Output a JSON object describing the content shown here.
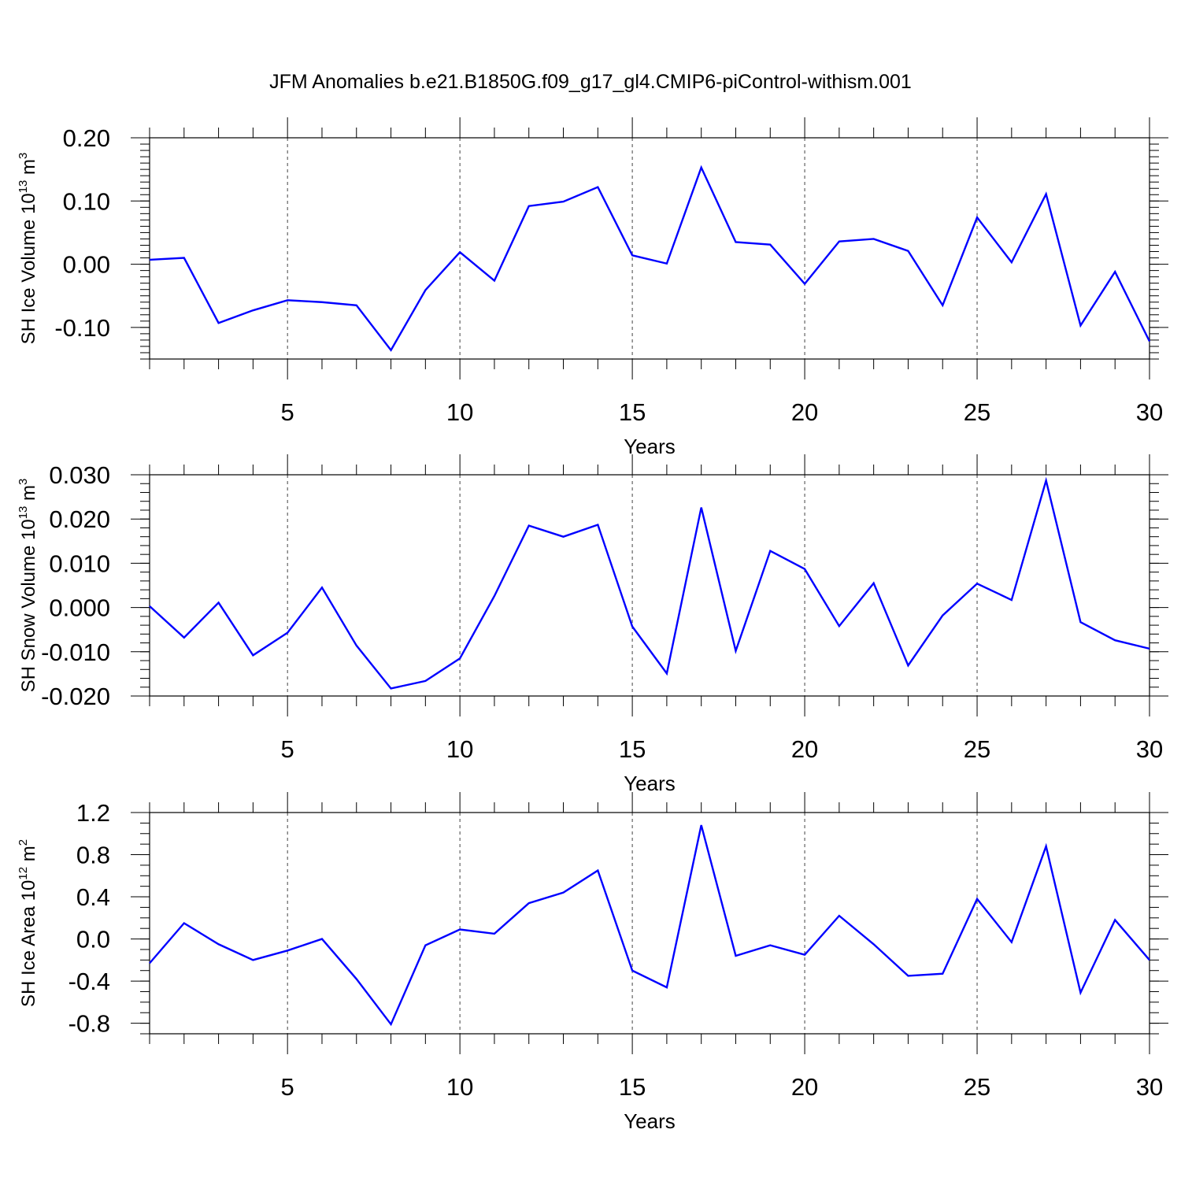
{
  "chart_data": [
    {
      "type": "line",
      "title": "JFM Anomalies b.e21.B1850G.f09_g17_gl4.CMIP6-piControl-withism.001",
      "ylabel": {
        "text": "SH Ice Volume 10",
        "exponent": "13",
        "unit": " m",
        "unit_exponent": "3"
      },
      "xlabel": "Years",
      "xlim": [
        1,
        30
      ],
      "ylim": [
        -0.15,
        0.2
      ],
      "xticks": [
        5,
        10,
        15,
        20,
        25,
        30
      ],
      "xtick_labels": [
        "5",
        "10",
        "15",
        "20",
        "25",
        "30"
      ],
      "yticks": [
        0.2,
        0.1,
        0.0,
        -0.1
      ],
      "ytick_labels": [
        "0.20",
        "0.10",
        "0.00",
        "-0.10"
      ],
      "grid": "vertical dashed at major x ticks",
      "line_color": "#0000ff",
      "series": [
        {
          "name": "SH Ice Volume",
          "x": [
            1,
            2,
            3,
            4,
            5,
            6,
            7,
            8,
            9,
            10,
            11,
            12,
            13,
            14,
            15,
            16,
            17,
            18,
            19,
            20,
            21,
            22,
            23,
            24,
            25,
            26,
            27,
            28,
            29,
            30
          ],
          "values": [
            0.007,
            0.01,
            -0.093,
            -0.073,
            -0.057,
            -0.06,
            -0.065,
            -0.136,
            -0.041,
            0.019,
            -0.026,
            0.092,
            0.099,
            0.122,
            0.014,
            0.001,
            0.153,
            0.035,
            0.031,
            -0.031,
            0.036,
            0.04,
            0.021,
            -0.065,
            0.074,
            0.003,
            0.111,
            -0.097,
            -0.012,
            -0.122
          ]
        }
      ]
    },
    {
      "type": "line",
      "ylabel": {
        "text": "SH Snow Volume 10",
        "exponent": "13",
        "unit": " m",
        "unit_exponent": "3"
      },
      "xlabel": "Years",
      "xlim": [
        1,
        30
      ],
      "ylim": [
        -0.02,
        0.03
      ],
      "xticks": [
        5,
        10,
        15,
        20,
        25,
        30
      ],
      "xtick_labels": [
        "5",
        "10",
        "15",
        "20",
        "25",
        "30"
      ],
      "yticks": [
        0.03,
        0.02,
        0.01,
        0.0,
        -0.01,
        -0.02
      ],
      "ytick_labels": [
        "0.030",
        "0.020",
        "0.010",
        "0.000",
        "-0.010",
        "-0.020"
      ],
      "grid": "vertical dashed at major x ticks",
      "line_color": "#0000ff",
      "series": [
        {
          "name": "SH Snow Volume",
          "x": [
            1,
            2,
            3,
            4,
            5,
            6,
            7,
            8,
            9,
            10,
            11,
            12,
            13,
            14,
            15,
            16,
            17,
            18,
            19,
            20,
            21,
            22,
            23,
            24,
            25,
            26,
            27,
            28,
            29,
            30
          ],
          "values": [
            0.0003,
            -0.0068,
            0.0011,
            -0.0108,
            -0.0057,
            0.0045,
            -0.0086,
            -0.0183,
            -0.0166,
            -0.0115,
            0.0026,
            0.0185,
            0.016,
            0.0187,
            -0.0043,
            -0.0149,
            0.0226,
            -0.0098,
            0.0128,
            0.0087,
            -0.0042,
            0.0055,
            -0.0131,
            -0.0018,
            0.0054,
            0.0017,
            0.0287,
            -0.0033,
            -0.0074,
            -0.0093
          ]
        }
      ]
    },
    {
      "type": "line",
      "ylabel": {
        "text": "SH Ice Area 10",
        "exponent": "12",
        "unit": " m",
        "unit_exponent": "2"
      },
      "xlabel": "Years",
      "xlim": [
        1,
        30
      ],
      "ylim": [
        -0.9,
        1.2
      ],
      "xticks": [
        5,
        10,
        15,
        20,
        25,
        30
      ],
      "xtick_labels": [
        "5",
        "10",
        "15",
        "20",
        "25",
        "30"
      ],
      "yticks": [
        1.2,
        0.8,
        0.4,
        0.0,
        -0.4,
        -0.8
      ],
      "ytick_labels": [
        "1.2",
        "0.8",
        "0.4",
        "0.0",
        "-0.4",
        "-0.8"
      ],
      "grid": "vertical dashed at major x ticks",
      "line_color": "#0000ff",
      "series": [
        {
          "name": "SH Ice Area",
          "x": [
            1,
            2,
            3,
            4,
            5,
            6,
            7,
            8,
            9,
            10,
            11,
            12,
            13,
            14,
            15,
            16,
            17,
            18,
            19,
            20,
            21,
            22,
            23,
            24,
            25,
            26,
            27,
            28,
            29,
            30
          ],
          "values": [
            -0.23,
            0.15,
            -0.05,
            -0.2,
            -0.11,
            0.0,
            -0.38,
            -0.81,
            -0.06,
            0.09,
            0.05,
            0.34,
            0.44,
            0.65,
            -0.3,
            -0.46,
            1.08,
            -0.16,
            -0.06,
            -0.15,
            0.22,
            -0.05,
            -0.35,
            -0.33,
            0.38,
            -0.03,
            0.88,
            -0.51,
            0.18,
            -0.2
          ]
        }
      ]
    }
  ]
}
